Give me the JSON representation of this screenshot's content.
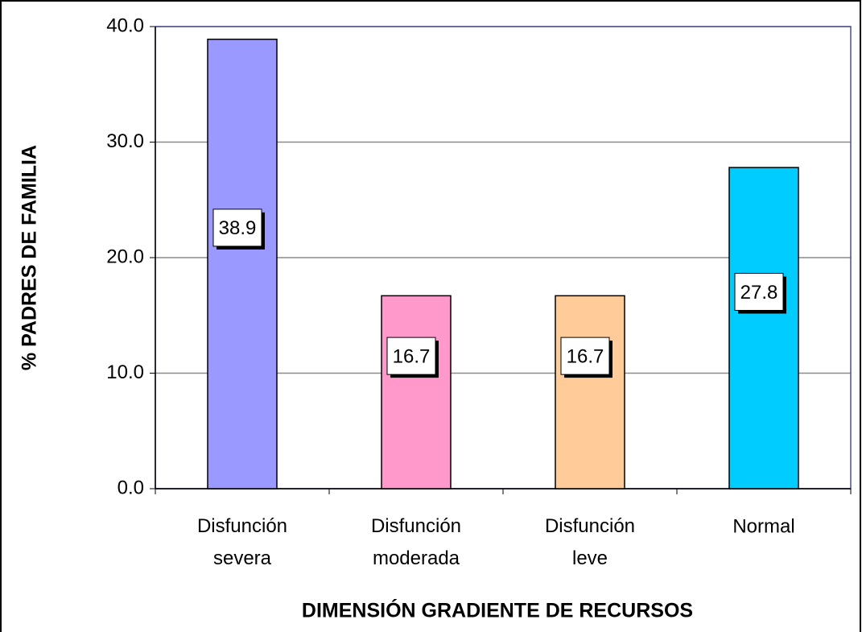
{
  "chart_data": {
    "type": "bar",
    "categories": [
      "Disfunción severa",
      "Disfunción moderada",
      "Disfunción leve",
      "Normal"
    ],
    "values": [
      38.9,
      16.7,
      16.7,
      27.8
    ],
    "colors": [
      "#9999ff",
      "#ff99cc",
      "#ffcc99",
      "#00ccff"
    ],
    "ylim": [
      0,
      40
    ],
    "yticks": [
      {
        "value": 0,
        "label": "0.0"
      },
      {
        "value": 10,
        "label": "10.0"
      },
      {
        "value": 20,
        "label": "20.0"
      },
      {
        "value": 30,
        "label": "30.0"
      },
      {
        "value": 40,
        "label": "40.0"
      }
    ],
    "grid": true,
    "x_label": "DIMENSIÓN GRADIENTE DE RECURSOS",
    "y_label": "% PADRES DE FAMILIA"
  }
}
